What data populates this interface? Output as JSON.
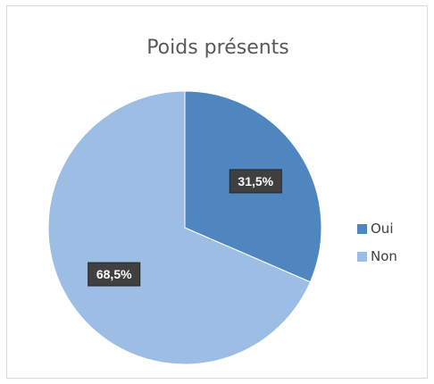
{
  "chart_data": {
    "type": "pie",
    "title": "Poids présents",
    "slices": [
      {
        "label": "Oui",
        "value": 31.5,
        "display": "31,5%",
        "color": "#4f86c0"
      },
      {
        "label": "Non",
        "value": 68.5,
        "display": "68,5%",
        "color": "#9cbee4"
      }
    ],
    "legend_position": "right",
    "label_box_color": "#404040",
    "label_text_color": "#ffffff"
  }
}
